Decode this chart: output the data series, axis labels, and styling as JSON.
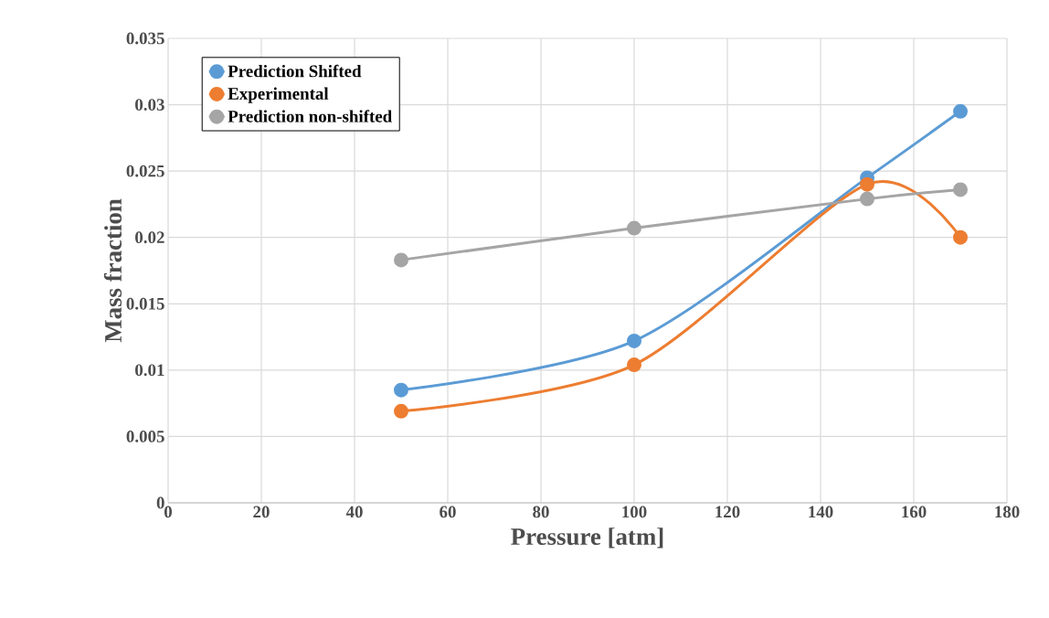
{
  "chart_data": {
    "type": "line",
    "xlabel": "Pressure [atm]",
    "ylabel": "Mass fraction",
    "x": [
      50,
      100,
      150,
      170
    ],
    "series": [
      {
        "name": "Prediction Shifted",
        "color": "#5b9bd5",
        "values": [
          0.0085,
          0.0122,
          0.0245,
          0.0295
        ]
      },
      {
        "name": "Experimental",
        "color": "#ed7d31",
        "values": [
          0.0069,
          0.0104,
          0.024,
          0.02
        ]
      },
      {
        "name": "Prediction non-shifted",
        "color": "#a5a5a5",
        "values": [
          0.0183,
          0.0207,
          0.0229,
          0.0236
        ]
      }
    ],
    "xlim": [
      0,
      180
    ],
    "xticks": [
      0,
      20,
      40,
      60,
      80,
      100,
      120,
      140,
      160,
      180
    ],
    "ylim": [
      0,
      0.035
    ],
    "yticks": [
      0,
      0.005,
      0.01,
      0.015,
      0.02,
      0.025,
      0.03,
      0.035
    ],
    "grid": true,
    "legend": "top left",
    "marker": "circle",
    "line_style": "solid"
  }
}
